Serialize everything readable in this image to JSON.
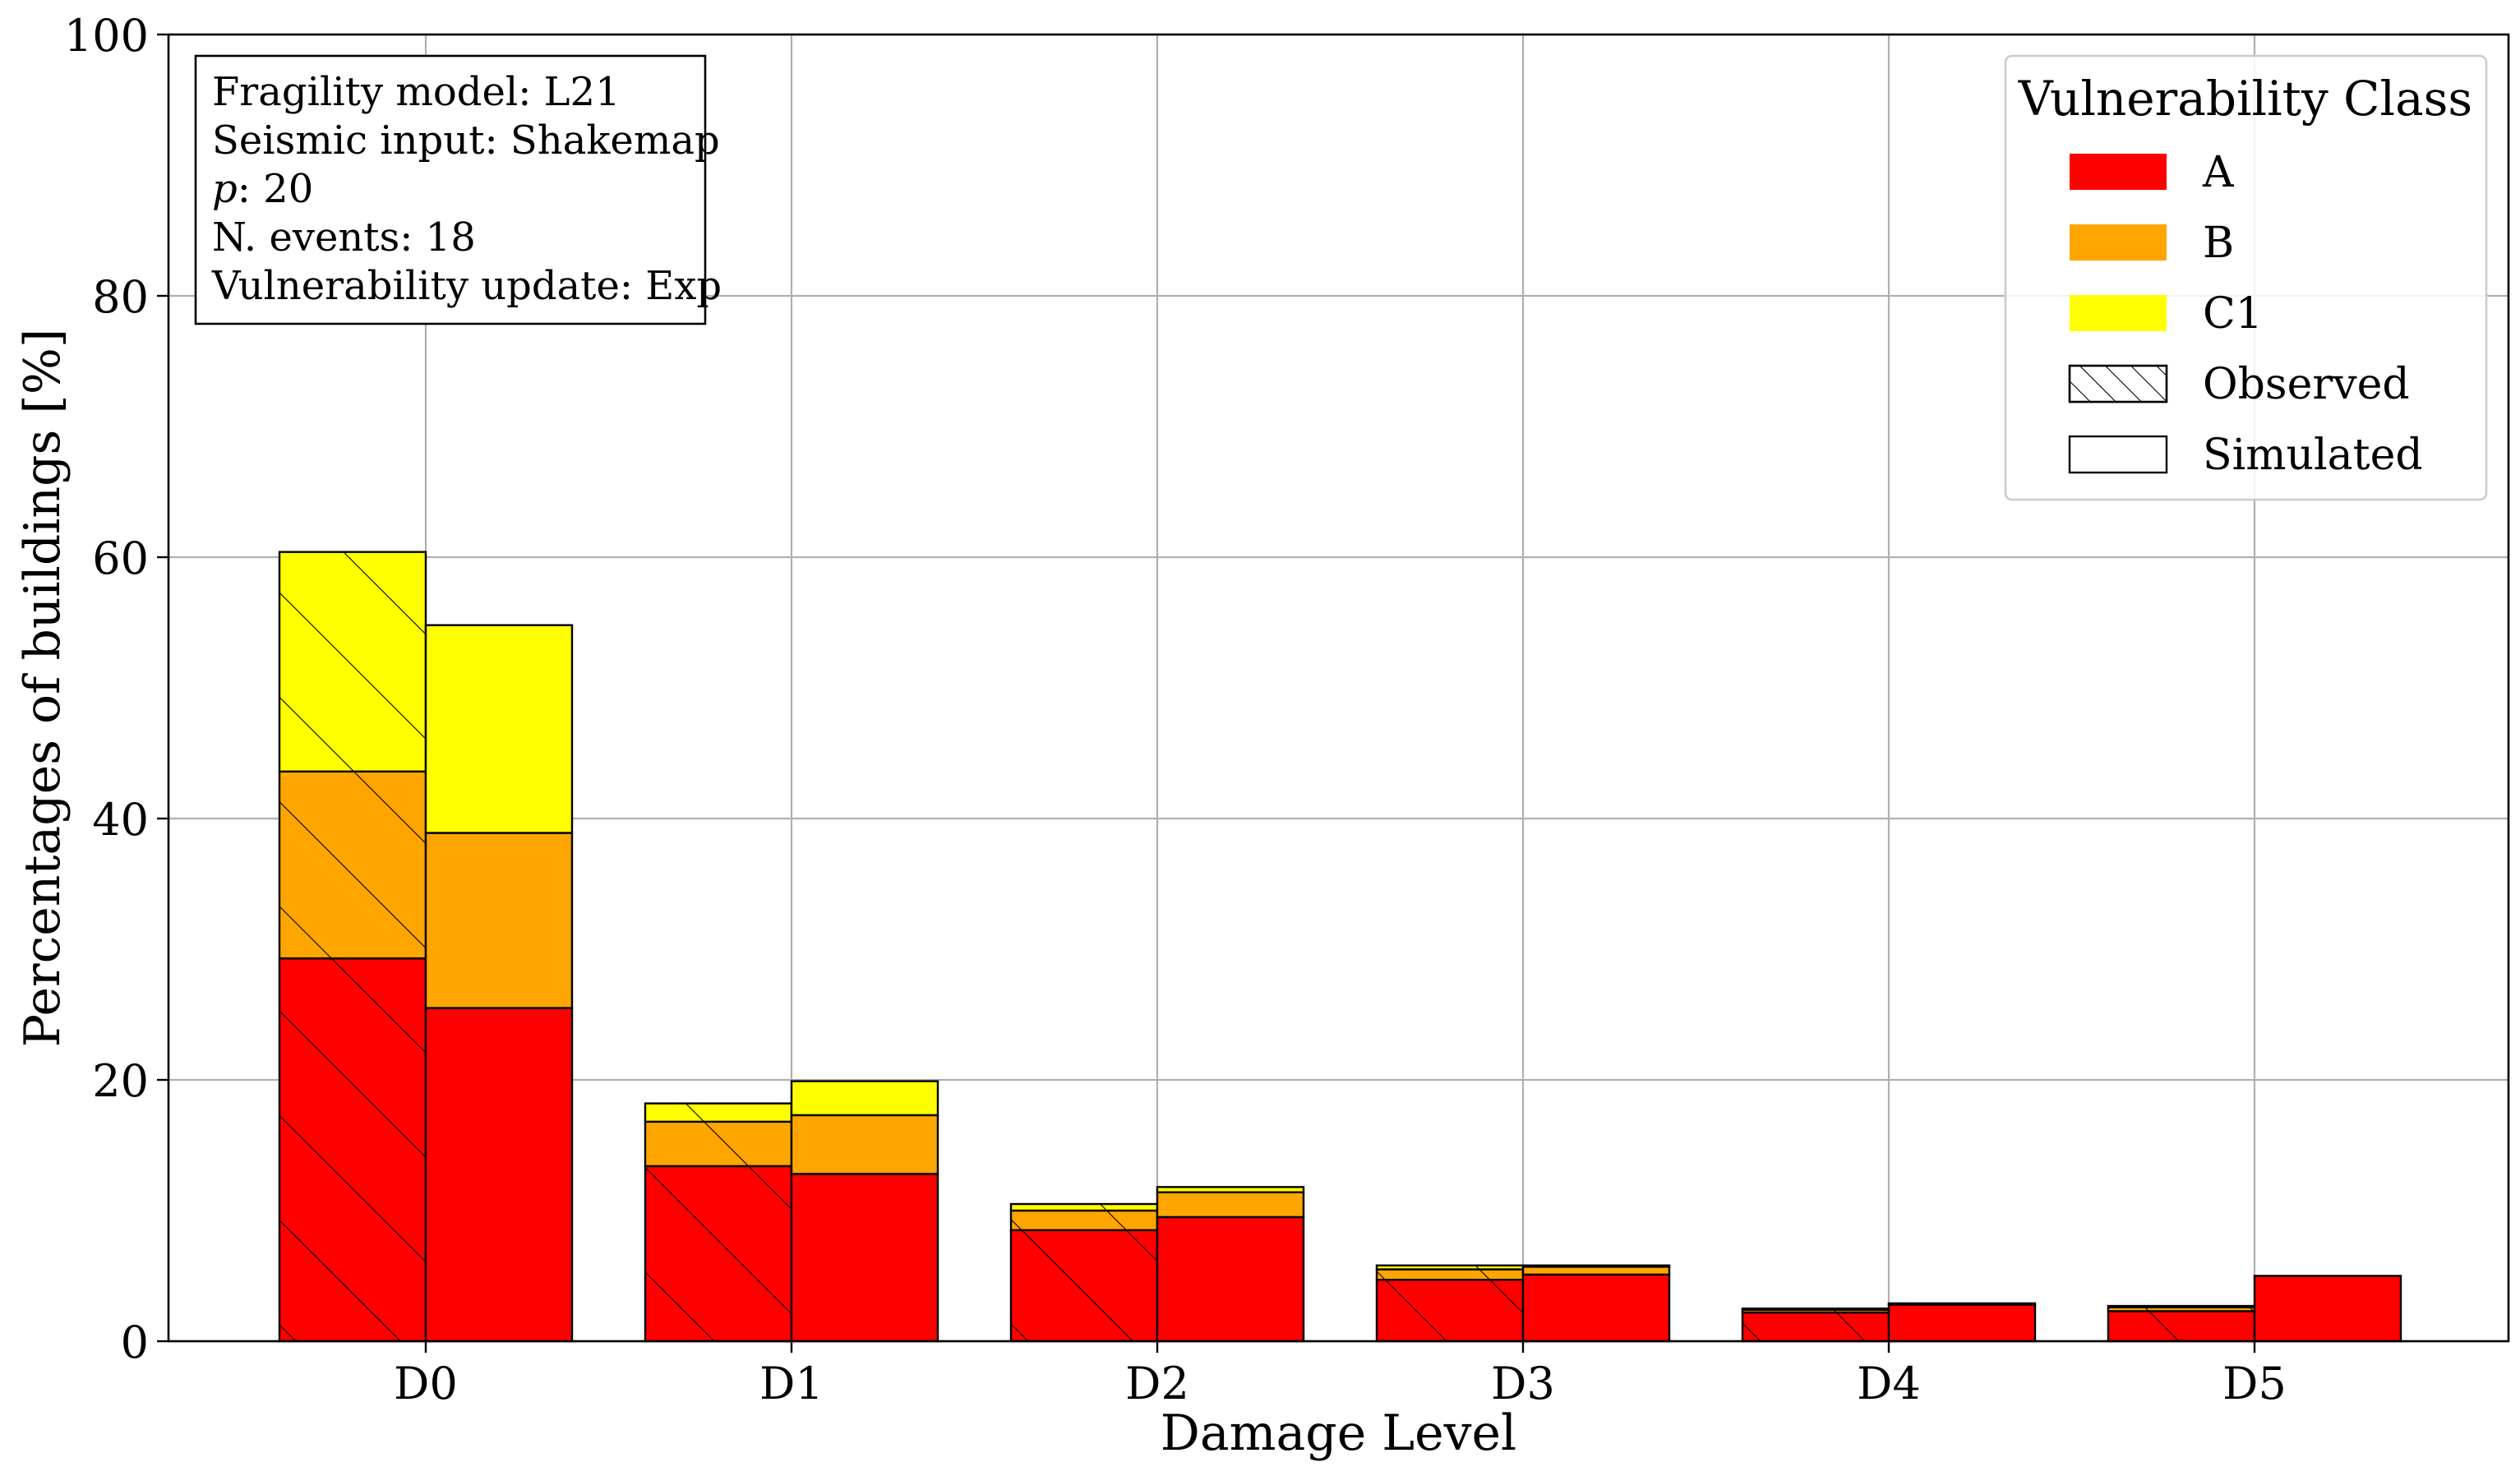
{
  "chart_data": {
    "type": "bar",
    "stacked": true,
    "grouped": true,
    "xlabel": "Damage Level",
    "ylabel": "Percentages of buildings [%]",
    "ylim": [
      0,
      100
    ],
    "yticks": [
      0,
      20,
      40,
      60,
      80,
      100
    ],
    "grid": true,
    "categories": [
      "D0",
      "D1",
      "D2",
      "D3",
      "D4",
      "D5"
    ],
    "groups": [
      {
        "name": "Observed",
        "hatched": true,
        "series": [
          {
            "name": "A",
            "color": "#ff0000",
            "values": [
              29.3,
              13.4,
              8.5,
              4.7,
              2.2,
              2.3
            ]
          },
          {
            "name": "B",
            "color": "#ffa500",
            "values": [
              14.3,
              3.4,
              1.5,
              0.8,
              0.2,
              0.3
            ]
          },
          {
            "name": "C1",
            "color": "#ffff00",
            "values": [
              16.8,
              1.4,
              0.5,
              0.3,
              0.1,
              0.1
            ]
          }
        ]
      },
      {
        "name": "Simulated",
        "hatched": false,
        "series": [
          {
            "name": "A",
            "color": "#ff0000",
            "values": [
              25.5,
              12.8,
              9.5,
              5.1,
              2.8,
              5.0
            ]
          },
          {
            "name": "B",
            "color": "#ffa500",
            "values": [
              13.4,
              4.5,
              1.9,
              0.6,
              0.1,
              0.0
            ]
          },
          {
            "name": "C1",
            "color": "#ffff00",
            "values": [
              15.9,
              2.6,
              0.4,
              0.1,
              0.0,
              0.0
            ]
          }
        ]
      }
    ],
    "legend": {
      "title": "Vulnerability Class",
      "placement": "top-right",
      "entries": [
        {
          "label": "A",
          "color": "#ff0000",
          "hatched": false
        },
        {
          "label": "B",
          "color": "#ffa500",
          "hatched": false
        },
        {
          "label": "C1",
          "color": "#ffff00",
          "hatched": false
        },
        {
          "label": "Observed",
          "color": "#ffffff",
          "hatched": true
        },
        {
          "label": "Simulated",
          "color": "#ffffff",
          "hatched": false
        }
      ]
    },
    "annotation": {
      "placement": "top-left",
      "lines": [
        {
          "label": "Fragility model",
          "value": "L21",
          "italic_label": false
        },
        {
          "label": "Seismic input",
          "value": "Shakemap",
          "italic_label": false
        },
        {
          "label": "p",
          "value": "20",
          "italic_label": true
        },
        {
          "label": "N. events",
          "value": "18",
          "italic_label": false
        },
        {
          "label": "Vulnerability update",
          "value": "Exp",
          "italic_label": false
        }
      ]
    }
  }
}
